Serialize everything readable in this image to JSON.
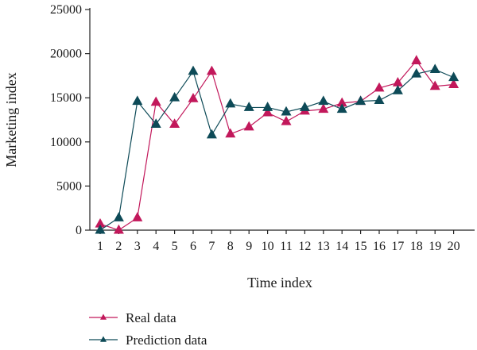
{
  "chart_data": {
    "type": "line",
    "xlabel": "Time index",
    "ylabel": "Marketing index",
    "x": [
      1,
      2,
      3,
      4,
      5,
      6,
      7,
      8,
      9,
      10,
      11,
      12,
      13,
      14,
      15,
      16,
      17,
      18,
      19,
      20
    ],
    "ylim": [
      0,
      25000
    ],
    "yticks": [
      0,
      5000,
      10000,
      15000,
      20000,
      25000
    ],
    "grid": false,
    "legend_position": "bottom-left",
    "series": [
      {
        "name": "Real data",
        "color": "#c2185b",
        "marker": "triangle",
        "values": [
          700,
          0,
          1400,
          14500,
          12000,
          14900,
          18000,
          10900,
          11700,
          13300,
          12300,
          13500,
          13700,
          14400,
          14600,
          16100,
          16700,
          19200,
          16300,
          16500
        ]
      },
      {
        "name": "Prediction data",
        "color": "#0d4a57",
        "marker": "triangle",
        "values": [
          0,
          1400,
          14600,
          12000,
          15000,
          18000,
          10800,
          14300,
          13900,
          13900,
          13400,
          13900,
          14600,
          13700,
          14600,
          14700,
          15800,
          17700,
          18200,
          17300
        ]
      }
    ]
  }
}
